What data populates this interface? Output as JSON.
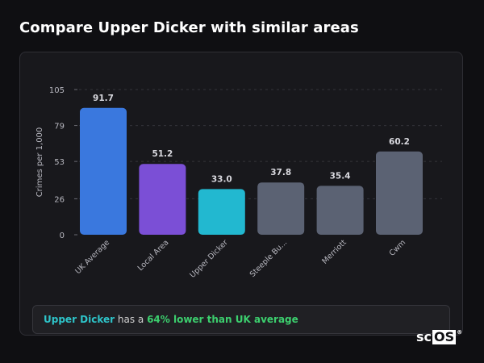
{
  "page": {
    "title": "Compare Upper Dicker with similar areas"
  },
  "chart_data": {
    "type": "bar",
    "title": "",
    "xlabel": "",
    "ylabel": "Crimes per 1,000",
    "ylim": [
      0,
      105
    ],
    "yticks": [
      0,
      26,
      53,
      79,
      105
    ],
    "grid": "dashed horizontal",
    "categories": [
      "UK Average",
      "Local Area",
      "Upper Dicker",
      "Steeple Bu...",
      "Merriott",
      "Cwm"
    ],
    "values": [
      91.7,
      51.2,
      33.0,
      37.8,
      35.4,
      60.2
    ],
    "value_labels": [
      "91.7",
      "51.2",
      "33.0",
      "37.8",
      "35.4",
      "60.2"
    ],
    "colors": [
      "#3a78de",
      "#7b4fd6",
      "#22b8d0",
      "#5b6273",
      "#5b6273",
      "#5b6273"
    ]
  },
  "summary": {
    "place": "Upper Dicker",
    "middle": " has a ",
    "difference": "64% lower than UK average"
  },
  "logo": {
    "prefix": "sc",
    "boxed": "OS",
    "mark": "®"
  }
}
